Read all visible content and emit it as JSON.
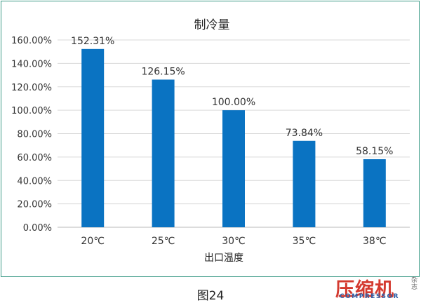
{
  "chart_data": {
    "type": "bar",
    "title": "制冷量",
    "xlabel": "出口温度",
    "ylabel": "",
    "categories": [
      "20℃",
      "25℃",
      "30℃",
      "35℃",
      "38℃"
    ],
    "values": [
      152.31,
      126.15,
      100.0,
      73.84,
      58.15
    ],
    "value_labels": [
      "152.31%",
      "126.15%",
      "100.00%",
      "73.84%",
      "58.15%"
    ],
    "ylim": [
      0,
      160
    ],
    "yticks": [
      "0.00%",
      "20.00%",
      "40.00%",
      "60.00%",
      "80.00%",
      "100.00%",
      "120.00%",
      "140.00%",
      "160.00%"
    ],
    "grid": true,
    "legend": "none",
    "bar_color": "#0a73c2"
  },
  "caption": "图24",
  "watermark": {
    "main": "压缩机",
    "sub": "COMPRESSOR",
    "side": "杂志"
  }
}
